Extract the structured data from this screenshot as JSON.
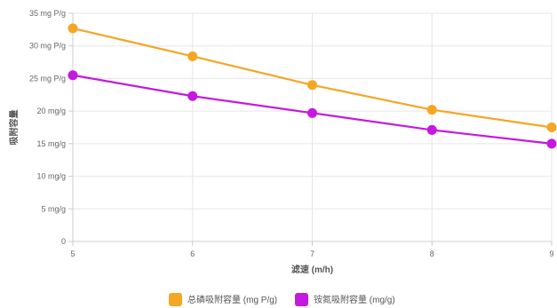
{
  "chart_data": {
    "type": "line",
    "title": "",
    "xlabel": "滤速 (m/h)",
    "ylabel": "吸附容量",
    "x": [
      5,
      6,
      7,
      8,
      9
    ],
    "x_ticks": [
      "5",
      "6",
      "7",
      "8",
      "9"
    ],
    "xlim": [
      5,
      9
    ],
    "ylim": [
      0,
      35
    ],
    "y_ticks": [
      {
        "value": 35,
        "label": "35 mg P/g"
      },
      {
        "value": 30,
        "label": "30 mg P/g"
      },
      {
        "value": 25,
        "label": "25 mg P/g"
      },
      {
        "value": 20,
        "label": "20 mg/g"
      },
      {
        "value": 15,
        "label": "15 mg/g"
      },
      {
        "value": 10,
        "label": "10 mg/g"
      },
      {
        "value": 5,
        "label": "5 mg/g"
      },
      {
        "value": 0,
        "label": "0"
      }
    ],
    "grid": true,
    "legend_position": "bottom",
    "series": [
      {
        "name": "总磷吸附容量 (mg P/g)",
        "color": "#f5a623",
        "values": [
          32.7,
          28.4,
          24.0,
          20.2,
          17.5
        ]
      },
      {
        "name": "铵氮吸附容量 (mg/g)",
        "color": "#c518e0",
        "values": [
          25.5,
          22.3,
          19.7,
          17.1,
          15.0
        ]
      }
    ]
  }
}
